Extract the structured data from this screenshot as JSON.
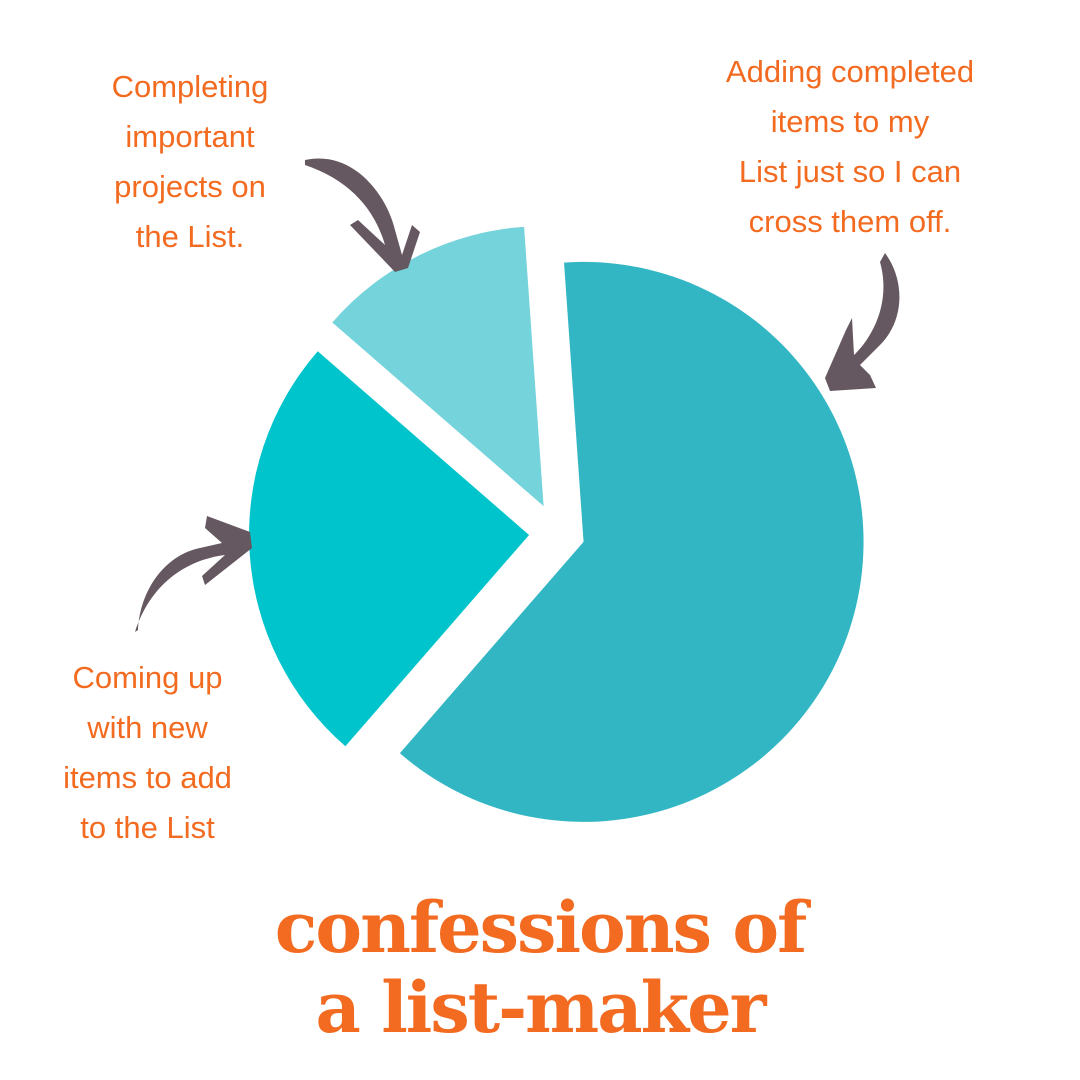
{
  "chart_data": {
    "type": "pie",
    "title": "confessions of a list-maker",
    "title_lines": [
      "confessions of",
      "a list-maker"
    ],
    "slices": [
      {
        "label": "Adding completed items to my List just so I can cross them off.",
        "value": 62.5,
        "color": "#32B6C4"
      },
      {
        "label": "Coming up with new items to add to the List",
        "value": 25,
        "color": "#00C4CC"
      },
      {
        "label": "Completing important projects on the List.",
        "value": 12.5,
        "color": "#74D3DB"
      }
    ],
    "exploded": true,
    "legend": "none (callout labels with arrows)"
  },
  "labels": {
    "top_left": "Completing\nimportant\nprojects on\nthe List.",
    "top_right": "Adding completed\nitems to my\nList just so I can\ncross them off.",
    "bottom_left": "Coming up\nwith new\nitems to add\nto the List"
  },
  "colors": {
    "text": "#F26B21",
    "arrow": "#665860",
    "background": "#FFFFFF"
  }
}
